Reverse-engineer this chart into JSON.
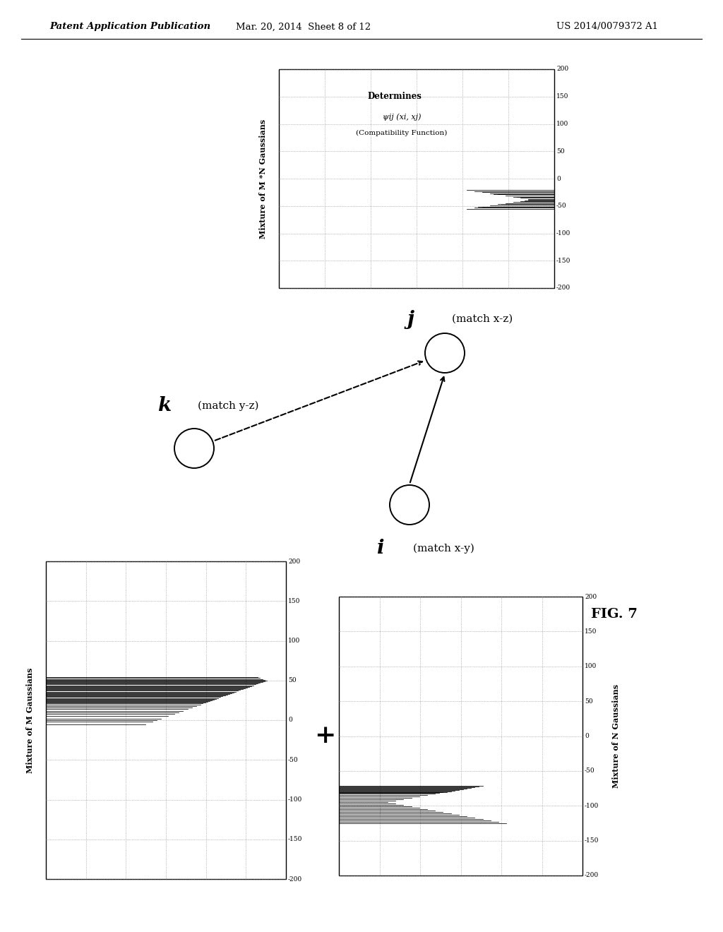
{
  "header_left": "Patent Application Publication",
  "header_mid": "Mar. 20, 2014  Sheet 8 of 12",
  "header_right": "US 2014/0079372 A1",
  "fig_label": "FIG. 7",
  "bg_color": "#ffffff",
  "plot1_ylabel": "Mixture of M Gaussians",
  "plot1_yticks": [
    -200,
    -150,
    -100,
    -50,
    0,
    50,
    100,
    150,
    200
  ],
  "plot2_ylabel": "Mixture of N Gaussians",
  "plot2_yticks": [
    -200,
    -150,
    -100,
    -50,
    0,
    50,
    100,
    150,
    200
  ],
  "plot3_ylabel": "Mixture of M *N Gaussians",
  "plot3_yticks": [
    -200,
    -150,
    -100,
    -50,
    0,
    50,
    100,
    150,
    200
  ],
  "node_i_label": "i",
  "node_i_sublabel": "(match x-y)",
  "node_j_label": "j",
  "node_j_sublabel": "(match x-z)",
  "node_k_label": "k",
  "node_k_sublabel": "(match y-z)",
  "determines_text": "Determines",
  "psi_text": "ψij (xi, xj)",
  "compat_text": "(Compatibility Function)"
}
